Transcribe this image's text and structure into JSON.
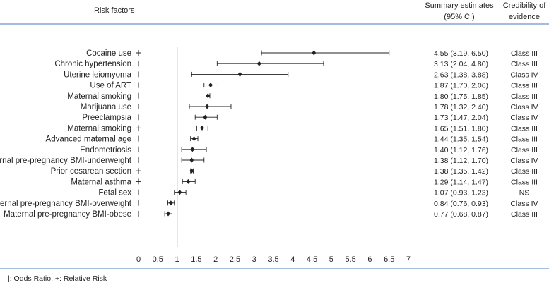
{
  "header": {
    "risk_factors": "Risk factors",
    "summary_line1": "Summary estimates",
    "summary_line2": "(95% CI)",
    "credibility_line1": "Credibility of",
    "credibility_line2": "evidence"
  },
  "footer": {
    "legend_text": "|: Odds Ratio, +: Relative Risk"
  },
  "chart_data": {
    "type": "forest",
    "xlim": [
      0,
      7
    ],
    "reference_line": 1,
    "x_ticks": [
      "0",
      "0.5",
      "1",
      "1.5",
      "2",
      "2.5",
      "3",
      "3.5",
      "4",
      "4.5",
      "5",
      "5.5",
      "6",
      "6.5",
      "7"
    ],
    "rows": [
      {
        "label": "Cocaine use",
        "measure": "RR",
        "est": 4.55,
        "lo": 3.19,
        "hi": 6.5,
        "ci_text": "4.55 (3.19, 6.50)",
        "evidence": "Class III"
      },
      {
        "label": "Chronic hypertension",
        "measure": "OR",
        "est": 3.13,
        "lo": 2.04,
        "hi": 4.8,
        "ci_text": "3.13 (2.04, 4.80)",
        "evidence": "Class III"
      },
      {
        "label": "Uterine leiomyoma",
        "measure": "OR",
        "est": 2.63,
        "lo": 1.38,
        "hi": 3.88,
        "ci_text": "2.63 (1.38, 3.88)",
        "evidence": "Class IV"
      },
      {
        "label": "Use of ART",
        "measure": "OR",
        "est": 1.87,
        "lo": 1.7,
        "hi": 2.06,
        "ci_text": "1.87 (1.70, 2.06)",
        "evidence": "Class III"
      },
      {
        "label": "Maternal smoking",
        "measure": "OR",
        "est": 1.8,
        "lo": 1.75,
        "hi": 1.85,
        "ci_text": "1.80 (1.75, 1.85)",
        "evidence": "Class III"
      },
      {
        "label": "Marijuana use",
        "measure": "OR",
        "est": 1.78,
        "lo": 1.32,
        "hi": 2.4,
        "ci_text": "1.78 (1.32, 2.40)",
        "evidence": "Class IV"
      },
      {
        "label": "Preeclampsia",
        "measure": "OR",
        "est": 1.73,
        "lo": 1.47,
        "hi": 2.04,
        "ci_text": "1.73 (1.47, 2.04)",
        "evidence": "Class IV"
      },
      {
        "label": "Maternal smoking",
        "measure": "RR",
        "est": 1.65,
        "lo": 1.51,
        "hi": 1.8,
        "ci_text": "1.65 (1.51, 1.80)",
        "evidence": "Class III"
      },
      {
        "label": "Advanced maternal age",
        "measure": "OR",
        "est": 1.44,
        "lo": 1.35,
        "hi": 1.54,
        "ci_text": "1.44 (1.35, 1.54)",
        "evidence": "Class III"
      },
      {
        "label": "Endometriosis",
        "measure": "OR",
        "est": 1.4,
        "lo": 1.12,
        "hi": 1.76,
        "ci_text": "1.40 (1.12, 1.76)",
        "evidence": "Class III"
      },
      {
        "label": "Maternal pre-pregnancy BMI-underweight",
        "measure": "OR",
        "est": 1.38,
        "lo": 1.12,
        "hi": 1.7,
        "ci_text": "1.38 (1.12, 1.70)",
        "evidence": "Class IV"
      },
      {
        "label": "Prior cesarean section",
        "measure": "RR",
        "est": 1.38,
        "lo": 1.35,
        "hi": 1.42,
        "ci_text": "1.38 (1.35, 1.42)",
        "evidence": "Class III"
      },
      {
        "label": "Maternal asthma",
        "measure": "RR",
        "est": 1.29,
        "lo": 1.14,
        "hi": 1.47,
        "ci_text": "1.29 (1.14, 1.47)",
        "evidence": "Class III"
      },
      {
        "label": "Fetal sex",
        "measure": "OR",
        "est": 1.07,
        "lo": 0.93,
        "hi": 1.23,
        "ci_text": "1.07 (0.93, 1.23)",
        "evidence": "NS"
      },
      {
        "label": "Maternal pre-pregnancy BMI-overweight",
        "measure": "OR",
        "est": 0.84,
        "lo": 0.76,
        "hi": 0.93,
        "ci_text": "0.84 (0.76, 0.93)",
        "evidence": "Class IV"
      },
      {
        "label": "Maternal pre-pregnancy BMI-obese",
        "measure": "OR",
        "est": 0.77,
        "lo": 0.68,
        "hi": 0.87,
        "ci_text": "0.77 (0.68, 0.87)",
        "evidence": "Class III"
      }
    ],
    "colors": {
      "rule": "#4a78c2",
      "ink": "#222222",
      "ref_line": "#333333"
    }
  }
}
